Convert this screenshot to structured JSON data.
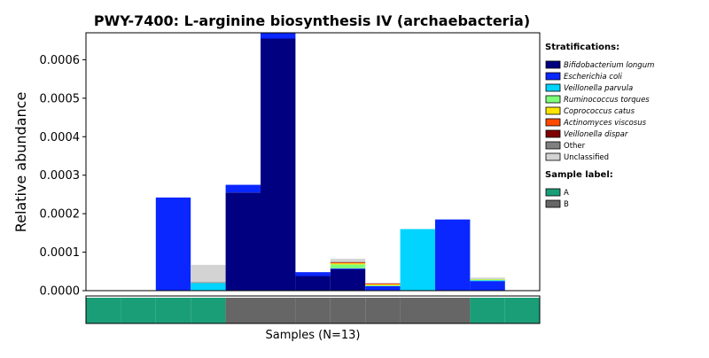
{
  "chart_data": {
    "type": "bar",
    "stacked": true,
    "title": "PWY-7400: L-arginine biosynthesis IV (archaebacteria)",
    "xlabel": "Samples (N=13)",
    "ylabel": "Relative abundance",
    "ylim": [
      0,
      0.00067
    ],
    "yticks": [
      "0.0000",
      "0.0001",
      "0.0002",
      "0.0003",
      "0.0004",
      "0.0005",
      "0.0006"
    ],
    "ytick_values": [
      0,
      0.0001,
      0.0002,
      0.0003,
      0.0004,
      0.0005,
      0.0006
    ],
    "sample_count": 13,
    "legend_title": "Stratifications:",
    "series": [
      {
        "name": "Bifidobacterium longum",
        "color": "#000080",
        "values": [
          0,
          0,
          0,
          0,
          0.000255,
          0.000655,
          3.8e-05,
          5.6e-05,
          0,
          0,
          0,
          0,
          0
        ]
      },
      {
        "name": "Escherichia coli",
        "color": "#0a27ff",
        "values": [
          0,
          0,
          0.000242,
          0,
          2e-05,
          1.5e-05,
          1e-05,
          2e-06,
          1.2e-05,
          0,
          0.000185,
          2.5e-05,
          0
        ]
      },
      {
        "name": "Veillonella parvula",
        "color": "#00d4ff",
        "values": [
          0,
          0,
          0,
          2e-05,
          0,
          0,
          0,
          0,
          0,
          0.00016,
          0,
          2e-06,
          0
        ]
      },
      {
        "name": "Ruminococcus torques",
        "color": "#7dff7a",
        "values": [
          0,
          0,
          0,
          0,
          0,
          0,
          0,
          1e-05,
          2e-06,
          0,
          0,
          2e-06,
          0
        ]
      },
      {
        "name": "Coprococcus catus",
        "color": "#ffe500",
        "values": [
          0,
          0,
          0,
          0,
          0,
          0,
          0,
          3e-06,
          2e-06,
          0,
          0,
          1e-06,
          0
        ]
      },
      {
        "name": "Actinomyces viscosus",
        "color": "#ff4a00",
        "values": [
          0,
          0,
          0,
          0,
          0,
          0,
          0,
          2e-06,
          2e-06,
          0,
          0,
          0,
          0
        ]
      },
      {
        "name": "Veillonella dispar",
        "color": "#800000",
        "values": [
          0,
          0,
          0,
          0,
          0,
          0,
          0,
          1e-06,
          1e-06,
          0,
          0,
          0,
          0
        ]
      },
      {
        "name": "Other",
        "color": "#808080",
        "values": [
          0,
          0,
          0,
          2e-06,
          0,
          0,
          0,
          1e-06,
          0,
          0,
          0,
          0,
          0
        ]
      },
      {
        "name": "Unclassified",
        "color": "#d3d3d3",
        "values": [
          0,
          0,
          0,
          4.5e-05,
          0,
          0,
          0,
          8e-06,
          1e-06,
          0,
          0,
          4e-06,
          0
        ]
      }
    ],
    "sample_label": {
      "title": "Sample label:",
      "categories": [
        {
          "name": "A",
          "color": "#1a9e77"
        },
        {
          "name": "B",
          "color": "#666666"
        }
      ],
      "assignments": [
        "A",
        "A",
        "A",
        "A",
        "B",
        "B",
        "B",
        "B",
        "B",
        "B",
        "B",
        "A",
        "A"
      ]
    },
    "grid": false,
    "legend_position": "right"
  }
}
